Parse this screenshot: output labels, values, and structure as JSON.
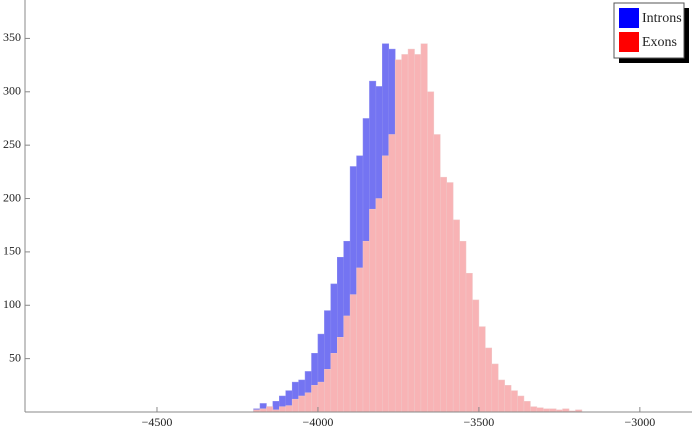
{
  "chart_data": {
    "type": "histogram",
    "bins": [
      -4200,
      -4180,
      -4160,
      -4140,
      -4120,
      -4100,
      -4080,
      -4060,
      -4040,
      -4020,
      -4000,
      -3980,
      -3960,
      -3940,
      -3920,
      -3900,
      -3880,
      -3860,
      -3840,
      -3820,
      -3800,
      -3780,
      -3760,
      -3740,
      -3720,
      -3700,
      -3680,
      -3660,
      -3640,
      -3620,
      -3600,
      -3580,
      -3560,
      -3540,
      -3520,
      -3500,
      -3480,
      -3460,
      -3440,
      -3420,
      -3400,
      -3380,
      -3360,
      -3340,
      -3320,
      -3300,
      -3280,
      -3260,
      -3240,
      -3220,
      -3200,
      -3180
    ],
    "series": [
      {
        "name": "Introns",
        "color": "#7474f2",
        "values": [
          3,
          8,
          5,
          10,
          15,
          20,
          28,
          30,
          38,
          55,
          73,
          95,
          120,
          145,
          160,
          230,
          240,
          275,
          310,
          305,
          345,
          340,
          270,
          220,
          180,
          150,
          110,
          80,
          60,
          40,
          25,
          15,
          8,
          4,
          2,
          0,
          0,
          0,
          0,
          0,
          0,
          0,
          0,
          0,
          0,
          0,
          0,
          0,
          0,
          0,
          0
        ]
      },
      {
        "name": "Exons",
        "color": "#f8b3b5",
        "values": [
          2,
          3,
          5,
          2,
          5,
          6,
          12,
          15,
          18,
          25,
          28,
          40,
          55,
          70,
          90,
          110,
          135,
          160,
          190,
          200,
          240,
          260,
          330,
          335,
          340,
          335,
          345,
          300,
          260,
          220,
          215,
          180,
          160,
          130,
          105,
          80,
          60,
          45,
          30,
          25,
          20,
          15,
          10,
          5,
          4,
          3,
          3,
          2,
          3,
          1,
          2
        ]
      }
    ],
    "legend_colors": [
      "#0000ff",
      "#ff0000"
    ],
    "xlim": [
      -4910,
      -2838
    ],
    "ylim": [
      0,
      386
    ],
    "xticks": [
      {
        "value": -4500,
        "label": "−4500"
      },
      {
        "value": -4000,
        "label": "−4000"
      },
      {
        "value": -3500,
        "label": "−3500"
      },
      {
        "value": -3000,
        "label": "−3000"
      }
    ],
    "yticks": [
      50,
      100,
      150,
      200,
      250,
      300,
      350
    ],
    "legend": "top-right"
  }
}
